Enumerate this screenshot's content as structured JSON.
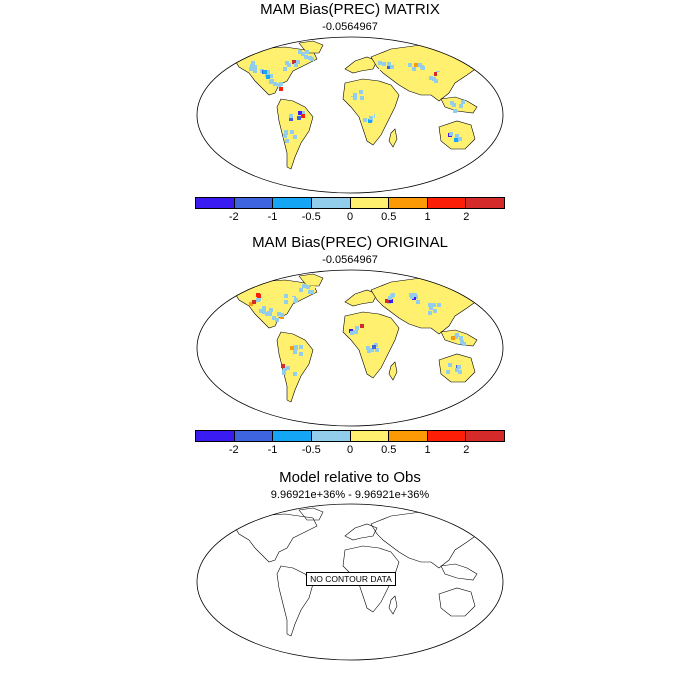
{
  "panels": [
    {
      "title": "MAM Bias(PREC) MATRIX",
      "subtitle": "-0.0564967"
    },
    {
      "title": "MAM Bias(PREC) ORIGINAL",
      "subtitle": "-0.0564967"
    },
    {
      "title": "Model relative to Obs",
      "subtitle": "9.96921e+36% - 9.96921e+36%",
      "no_data_label": "NO CONTOUR DATA"
    }
  ],
  "colorbar": {
    "colors": [
      "#3a1cf2",
      "#3f64e0",
      "#14a5f5",
      "#92cdeb",
      "#fff070",
      "#fc9a05",
      "#fc1e06",
      "#d52a2a"
    ],
    "tick_labels": [
      "-2",
      "-1",
      "-0.5",
      "0",
      "0.5",
      "1",
      "2"
    ]
  },
  "map": {
    "projection": "robinson",
    "land_color": "#fff070",
    "outline_color": "#000000"
  }
}
